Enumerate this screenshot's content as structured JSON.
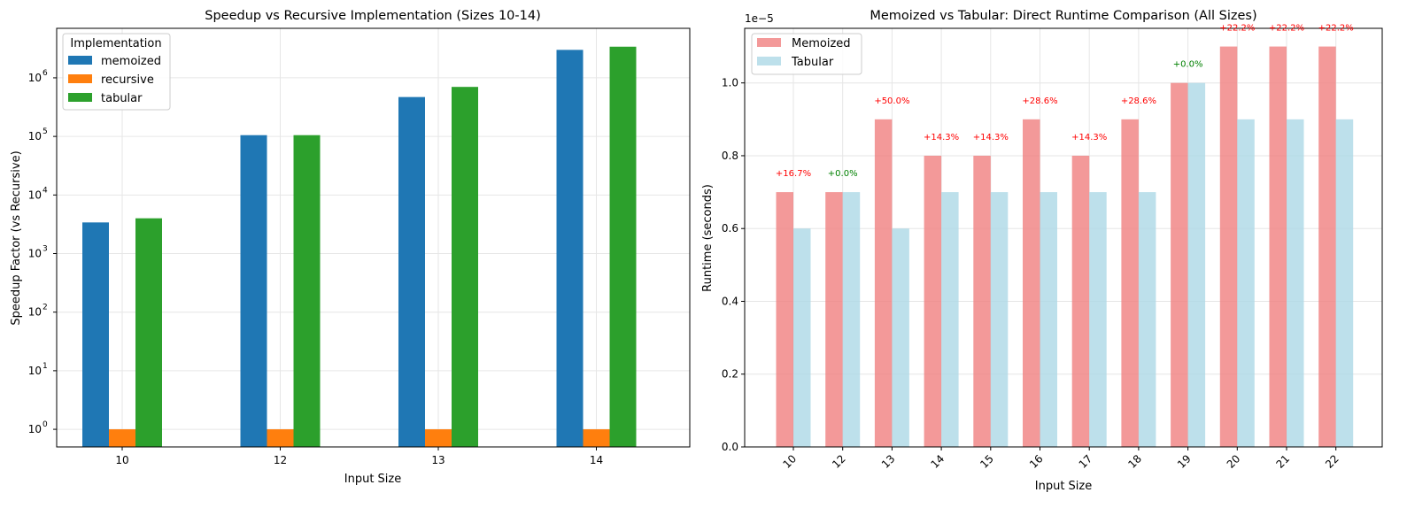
{
  "chart_data": [
    {
      "type": "bar",
      "title": "Speedup vs Recursive Implementation (Sizes 10-14)",
      "xlabel": "Input Size",
      "ylabel": "Speedup Factor (vs Recursive)",
      "yscale": "log",
      "ylim": [
        0.5,
        7000000
      ],
      "yticks": [
        1,
        10,
        100,
        1000,
        10000,
        100000,
        1000000
      ],
      "ytick_bases": [
        "10",
        "10",
        "10",
        "10",
        "10",
        "10",
        "10"
      ],
      "ytick_exps": [
        "0",
        "1",
        "2",
        "3",
        "4",
        "5",
        "6"
      ],
      "categories": [
        "10",
        "12",
        "13",
        "14"
      ],
      "grid": true,
      "legend": {
        "title": "Implementation",
        "placement": "upper left"
      },
      "series": [
        {
          "name": "memoized",
          "color": "#1f77b4",
          "values": [
            3400,
            105000,
            470000,
            3000000
          ]
        },
        {
          "name": "recursive",
          "color": "#ff7f0e",
          "values": [
            1,
            1,
            1,
            1
          ]
        },
        {
          "name": "tabular",
          "color": "#2ca02c",
          "values": [
            4000,
            105000,
            700000,
            3400000
          ]
        }
      ]
    },
    {
      "type": "bar",
      "title": "Memoized vs Tabular: Direct Runtime Comparison (All Sizes)",
      "xlabel": "Input Size",
      "ylabel": "Runtime (seconds)",
      "offset_text": "1e−5",
      "ylim": [
        0,
        1.15
      ],
      "yticks": [
        "0.0",
        "0.2",
        "0.4",
        "0.6",
        "0.8",
        "1.0"
      ],
      "categories": [
        "10",
        "12",
        "13",
        "14",
        "15",
        "16",
        "17",
        "18",
        "19",
        "20",
        "21",
        "22"
      ],
      "grid": true,
      "legend": {
        "placement": "upper left"
      },
      "series": [
        {
          "name": "Memoized",
          "color": "#f08080",
          "values": [
            0.7,
            0.7,
            0.9,
            0.8,
            0.8,
            0.9,
            0.8,
            0.9,
            1.0,
            1.1,
            1.1,
            1.1
          ]
        },
        {
          "name": "Tabular",
          "color": "#add8e6",
          "values": [
            0.6,
            0.7,
            0.6,
            0.7,
            0.7,
            0.7,
            0.7,
            0.7,
            1.0,
            0.9,
            0.9,
            0.9
          ]
        }
      ],
      "annotations": [
        "+16.7%",
        "+0.0%",
        "+50.0%",
        "+14.3%",
        "+14.3%",
        "+28.6%",
        "+14.3%",
        "+28.6%",
        "+0.0%",
        "+22.2%",
        "+22.2%",
        "+22.2%"
      ],
      "annotation_colors": [
        "#ff0000",
        "#008000",
        "#ff0000",
        "#ff0000",
        "#ff0000",
        "#ff0000",
        "#ff0000",
        "#ff0000",
        "#008000",
        "#ff0000",
        "#ff0000",
        "#ff0000"
      ]
    }
  ]
}
